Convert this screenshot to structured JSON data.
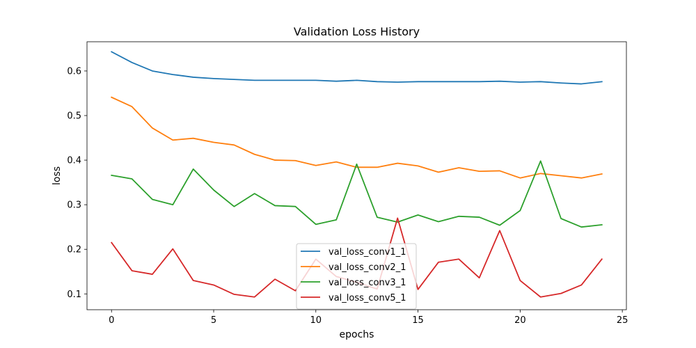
{
  "chart_data": {
    "type": "line",
    "title": "Validation Loss History",
    "xlabel": "epochs",
    "ylabel": "loss",
    "xlim": [
      -1.2,
      25.2
    ],
    "ylim": [
      0.0645,
      0.6655
    ],
    "xticks": [
      0,
      5,
      10,
      15,
      20,
      25
    ],
    "yticks": [
      0.1,
      0.2,
      0.3,
      0.4,
      0.5,
      0.6
    ],
    "grid": false,
    "legend_position": "lower-center",
    "x": [
      0,
      1,
      2,
      3,
      4,
      5,
      6,
      7,
      8,
      9,
      10,
      11,
      12,
      13,
      14,
      15,
      16,
      17,
      18,
      19,
      20,
      21,
      22,
      23,
      24
    ],
    "series": [
      {
        "name": "val_loss_conv1_1",
        "color": "#1f77b4",
        "values": [
          0.643,
          0.619,
          0.6,
          0.592,
          0.586,
          0.583,
          0.581,
          0.579,
          0.579,
          0.579,
          0.579,
          0.577,
          0.579,
          0.576,
          0.575,
          0.576,
          0.576,
          0.576,
          0.576,
          0.577,
          0.575,
          0.576,
          0.573,
          0.571,
          0.576
        ]
      },
      {
        "name": "val_loss_conv2_1",
        "color": "#ff7f0e",
        "values": [
          0.541,
          0.52,
          0.472,
          0.445,
          0.449,
          0.44,
          0.434,
          0.413,
          0.4,
          0.399,
          0.388,
          0.396,
          0.384,
          0.384,
          0.393,
          0.387,
          0.373,
          0.383,
          0.375,
          0.376,
          0.36,
          0.37,
          0.365,
          0.36,
          0.369
        ]
      },
      {
        "name": "val_loss_conv3_1",
        "color": "#2ca02c",
        "values": [
          0.366,
          0.358,
          0.312,
          0.3,
          0.38,
          0.333,
          0.296,
          0.325,
          0.298,
          0.296,
          0.256,
          0.266,
          0.391,
          0.272,
          0.261,
          0.277,
          0.262,
          0.274,
          0.272,
          0.254,
          0.287,
          0.398,
          0.269,
          0.25,
          0.255
        ]
      },
      {
        "name": "val_loss_conv5_1",
        "color": "#d62728",
        "values": [
          0.215,
          0.152,
          0.144,
          0.201,
          0.13,
          0.12,
          0.099,
          0.093,
          0.133,
          0.107,
          0.178,
          0.139,
          0.126,
          0.111,
          0.27,
          0.11,
          0.171,
          0.178,
          0.136,
          0.242,
          0.13,
          0.093,
          0.101,
          0.12,
          0.178
        ]
      }
    ]
  }
}
